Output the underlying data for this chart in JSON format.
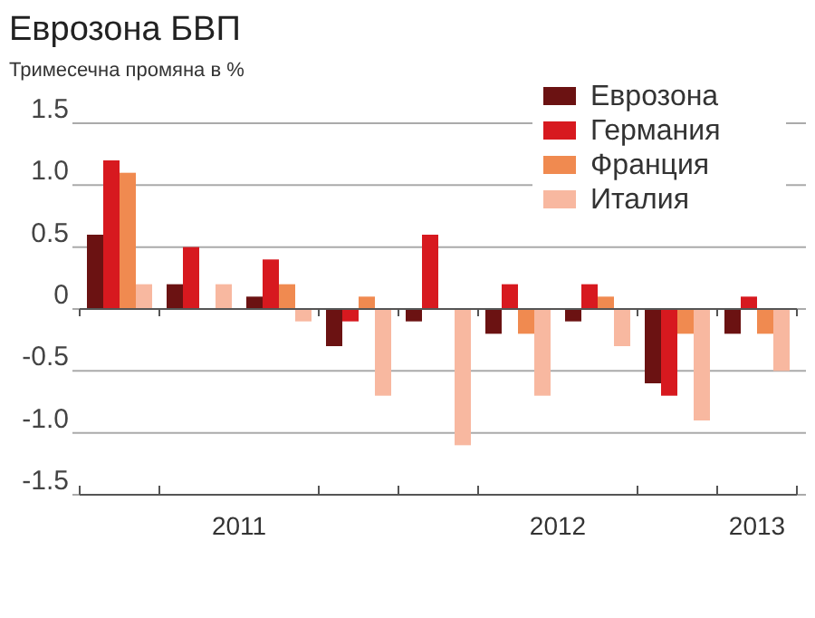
{
  "chart_data": {
    "type": "bar",
    "title": "Еврозона БВП",
    "subtitle": "Тримесечна промяна в %",
    "x": [
      2011.125,
      2011.375,
      2011.625,
      2011.875,
      2012.125,
      2012.375,
      2012.625,
      2012.875,
      2013.125
    ],
    "xlim": [
      2011,
      2013.25
    ],
    "xticks": [
      {
        "value": 2011,
        "label": null
      },
      {
        "value": 2011.25,
        "label": null
      },
      {
        "value": 2011.5,
        "label": "2011"
      },
      {
        "value": 2011.75,
        "label": null
      },
      {
        "value": 2012,
        "label": null
      },
      {
        "value": 2012.25,
        "label": null
      },
      {
        "value": 2012.5,
        "label": "2012"
      },
      {
        "value": 2012.75,
        "label": null
      },
      {
        "value": 2013,
        "label": null
      },
      {
        "value": 2013.125,
        "label": "2013"
      },
      {
        "value": 2013.25,
        "label": null
      }
    ],
    "series": [
      {
        "name": "Еврозона",
        "color": "#6b1212",
        "values": [
          0.6,
          0.2,
          0.1,
          -0.3,
          -0.1,
          -0.2,
          -0.1,
          -0.6,
          -0.2
        ]
      },
      {
        "name": "Германия",
        "color": "#d7191f",
        "values": [
          1.2,
          0.5,
          0.4,
          -0.1,
          0.6,
          0.2,
          0.2,
          -0.7,
          0.1
        ]
      },
      {
        "name": "Франция",
        "color": "#f08a50",
        "values": [
          1.1,
          0,
          0.2,
          0.1,
          0,
          -0.2,
          0.1,
          -0.2,
          -0.2
        ]
      },
      {
        "name": "Италия",
        "color": "#f8b8a0",
        "values": [
          0.2,
          0.2,
          -0.1,
          -0.7,
          -1.1,
          -0.7,
          -0.3,
          -0.9,
          -0.5
        ]
      }
    ],
    "ylim": [
      -1.5,
      1.5
    ],
    "yticks": [
      -1.5,
      {
        "value": -1,
        "label": "-1.0"
      },
      -0.5,
      0,
      0.5,
      {
        "value": 1,
        "label": "1.0"
      },
      1.5
    ],
    "grid": "y",
    "legend": "top right"
  }
}
